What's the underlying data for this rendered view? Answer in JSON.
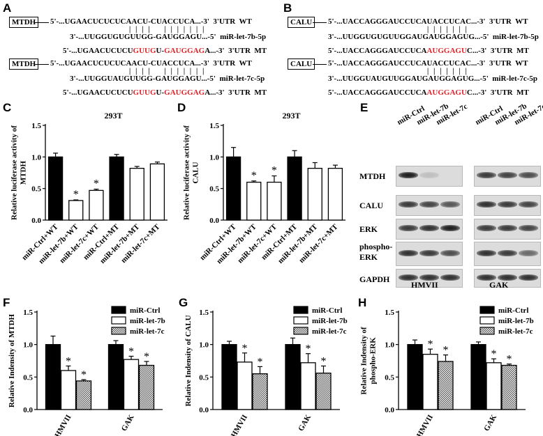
{
  "panels": {
    "A": "A",
    "B": "B",
    "C": "C",
    "D": "D",
    "E": "E",
    "F": "F",
    "G": "G",
    "H": "H"
  },
  "sequences": {
    "A": {
      "groups": [
        {
          "gene": "MTDH",
          "wt": "5'-...UGAACUCUCUCAACU-CUACCUCA...-3'  3'UTR  WT",
          "pairs": "| | | |    | | | | | | |",
          "mir": "3'-...UUGGUGUGUUGG-GAUGGAGU...-5'  miR-let-7b-5p",
          "mt_pre": "5'-...UGAACUCUCU",
          "mt_red1": "GUUG",
          "mt_mid": "U-",
          "mt_red2": "GAUGGAG",
          "mt_post": "A...-3'  3'UTR  MT"
        },
        {
          "gene": "MTDH",
          "wt": "5'-...UGAACUCUCUCAACU-CUACCUCA...-3'  3'UTR  WT",
          "pairs": "| | | |    | | | | | | |",
          "mir": "3'-...UUGGUAUGUUGG-GAUGGAGU...-5'  miR-let-7c-5p",
          "mt_pre": "5'-...UGAACUCUCU",
          "mt_red1": "GUUG",
          "mt_mid": "U-",
          "mt_red2": "GAUGGAG",
          "mt_post": "A...-3'  3'UTR  MT"
        }
      ]
    },
    "B": {
      "groups": [
        {
          "gene": "CALU",
          "wt": "5'-...UACCAGGGAUCCUCAUACCUCAC...-3'  3'UTR  WT",
          "pairs": "| | | | | | |",
          "mir": "3'-...UUGGUGUGUUGGAUGAUGGAGUG...-5'  miR-let-7b-5p",
          "mt_pre": "5'-...UACCAGGGAUCCUCA",
          "mt_red": "AUGGAGU",
          "mt_post": "C...-3'  3'UTR  MT"
        },
        {
          "gene": "CALU",
          "wt": "5'-...UACCAGGGAUCCUCAUACCUCAC...-3'  3'UTR  WT",
          "pairs": "| | | | | | |",
          "mir": "3'-...UUGGUAUGUUGGAUGAUGGAGUG...-5'  miR-let-7c-5p",
          "mt_pre": "5'-...UACCAGGGAUCCUCA",
          "mt_red": "AUGGAGU",
          "mt_post": "C...-3'  3'UTR  MT"
        }
      ]
    }
  },
  "blot": {
    "lanes": [
      "miR-Ctrl",
      "miR-let-7b",
      "miR-let-7c"
    ],
    "rows": [
      "MTDH",
      "CALU",
      "ERK",
      "phospho-\nERK",
      "GAPDH"
    ],
    "cells": [
      "HMVII",
      "GAK"
    ],
    "band_intensity": {
      "HMVII": [
        [
          1.0,
          0.15,
          0.0
        ],
        [
          0.85,
          0.8,
          0.7
        ],
        [
          0.85,
          0.9,
          1.0
        ],
        [
          0.9,
          0.85,
          0.75
        ],
        [
          0.9,
          0.9,
          0.9
        ]
      ],
      "GAK": [
        [
          0.85,
          0.8,
          0.75
        ],
        [
          0.9,
          0.85,
          0.8
        ],
        [
          0.85,
          0.85,
          0.8
        ],
        [
          0.9,
          0.85,
          0.6
        ],
        [
          0.9,
          0.9,
          0.9
        ]
      ]
    }
  },
  "chart_data": [
    {
      "panel": "C",
      "type": "bar",
      "title": "293T",
      "ylabel": "Relative luciferase activity of MTDH",
      "ylim": [
        0,
        1.5
      ],
      "yticks": [
        "0.0",
        "0.5",
        "1.0",
        "1.5"
      ],
      "categories": [
        "miR-Ctrl+WT",
        "miR-let-7b+WT",
        "miR-let-7c+WT",
        "miR-Ctrl+MT",
        "miR-let-7b+MT",
        "miR-let-7c+MT"
      ],
      "values": [
        1.0,
        0.31,
        0.47,
        1.0,
        0.82,
        0.89
      ],
      "errors": [
        0.06,
        0.01,
        0.02,
        0.04,
        0.03,
        0.03
      ],
      "fills": [
        "black",
        "white",
        "white",
        "black",
        "white",
        "white"
      ],
      "significance": [
        "",
        "*",
        "*",
        "",
        "",
        ""
      ],
      "legend": "none",
      "grid": false
    },
    {
      "panel": "D",
      "type": "bar",
      "title": "293T",
      "ylabel": "Relative luciferase activity of CALU",
      "ylim": [
        0,
        1.5
      ],
      "yticks": [
        "0.0",
        "0.5",
        "1.0",
        "1.5"
      ],
      "categories": [
        "miR-Ctrl+WT",
        "miR-let-7b+WT",
        "miR-let-7c+WT",
        "miR-Ctrl+MT",
        "miR-let-7b+MT",
        "miR-let-7c+MT"
      ],
      "values": [
        1.0,
        0.6,
        0.6,
        1.0,
        0.82,
        0.82
      ],
      "errors": [
        0.15,
        0.02,
        0.1,
        0.1,
        0.09,
        0.05
      ],
      "fills": [
        "black",
        "white",
        "white",
        "black",
        "white",
        "white"
      ],
      "significance": [
        "",
        "*",
        "*",
        "",
        "",
        ""
      ],
      "legend": "none",
      "grid": false
    },
    {
      "panel": "F",
      "type": "bar",
      "ylabel": "Relative Indensity of MTDH",
      "ylim": [
        0,
        1.5
      ],
      "yticks": [
        "0.0",
        "0.5",
        "1.0",
        "1.5"
      ],
      "categories": [
        "HMVII",
        "GAK"
      ],
      "series": [
        {
          "name": "miR-Ctrl",
          "fill": "black",
          "values": [
            1.0,
            1.0
          ],
          "errors": [
            0.13,
            0.06
          ],
          "significance": [
            "",
            ""
          ]
        },
        {
          "name": "miR-let-7b",
          "fill": "white",
          "values": [
            0.6,
            0.77
          ],
          "errors": [
            0.07,
            0.05
          ],
          "significance": [
            "*",
            "*"
          ]
        },
        {
          "name": "miR-let-7c",
          "fill": "hatch",
          "values": [
            0.44,
            0.68
          ],
          "errors": [
            0.02,
            0.06
          ],
          "significance": [
            "*",
            "*"
          ]
        }
      ],
      "legend": "top-right",
      "grid": false
    },
    {
      "panel": "G",
      "type": "bar",
      "ylabel": "Relative Indensity of CALU",
      "ylim": [
        0,
        1.5
      ],
      "yticks": [
        "0.0",
        "0.5",
        "1.0",
        "1.5"
      ],
      "categories": [
        "HMVII",
        "GAK"
      ],
      "series": [
        {
          "name": "miR-Ctrl",
          "fill": "black",
          "values": [
            1.0,
            1.0
          ],
          "errors": [
            0.05,
            0.1
          ],
          "significance": [
            "",
            ""
          ]
        },
        {
          "name": "miR-let-7b",
          "fill": "white",
          "values": [
            0.73,
            0.72
          ],
          "errors": [
            0.14,
            0.14
          ],
          "significance": [
            "*",
            "*"
          ]
        },
        {
          "name": "miR-let-7c",
          "fill": "hatch",
          "values": [
            0.55,
            0.56
          ],
          "errors": [
            0.11,
            0.11
          ],
          "significance": [
            "*",
            "*"
          ]
        }
      ],
      "legend": "top-right",
      "grid": false
    },
    {
      "panel": "H",
      "type": "bar",
      "ylabel": "Relative Indensity of phospho-ERK",
      "ylim": [
        0,
        1.5
      ],
      "yticks": [
        "0.0",
        "0.5",
        "1.0",
        "1.5"
      ],
      "categories": [
        "HMVII",
        "GAK"
      ],
      "series": [
        {
          "name": "miR-Ctrl",
          "fill": "black",
          "values": [
            1.0,
            1.0
          ],
          "errors": [
            0.07,
            0.04
          ],
          "significance": [
            "",
            ""
          ]
        },
        {
          "name": "miR-let-7b",
          "fill": "white",
          "values": [
            0.85,
            0.72
          ],
          "errors": [
            0.08,
            0.06
          ],
          "significance": [
            "*",
            "*"
          ]
        },
        {
          "name": "miR-let-7c",
          "fill": "hatch",
          "values": [
            0.74,
            0.68
          ],
          "errors": [
            0.1,
            0.02
          ],
          "significance": [
            "*",
            "*"
          ]
        }
      ],
      "legend": "top-right",
      "grid": false
    }
  ]
}
